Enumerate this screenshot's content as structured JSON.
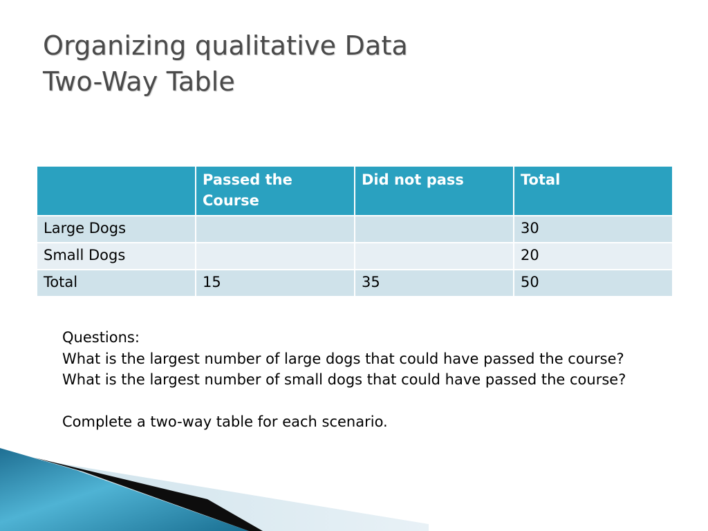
{
  "title": {
    "line1": "Organizing qualitative Data",
    "line2": "Two-Way Table"
  },
  "table": {
    "headers": [
      "",
      "Passed the Course",
      "Did not pass",
      "Total"
    ],
    "rows": [
      [
        "Large Dogs",
        "",
        "",
        "30"
      ],
      [
        "Small Dogs",
        "",
        "",
        "20"
      ],
      [
        "Total",
        "15",
        "35",
        "50"
      ]
    ]
  },
  "questions": {
    "heading": "Questions:",
    "q1": "What is the largest number of large dogs that could have passed the course?",
    "q2": "What is the largest number of small dogs that could have passed the course?",
    "instruction": "Complete a two-way table for each scenario."
  },
  "colors": {
    "header_bg": "#2aa1c0",
    "row_odd": "#cfe2ea",
    "row_even": "#e7eff4",
    "title": "#4a4a4a"
  }
}
